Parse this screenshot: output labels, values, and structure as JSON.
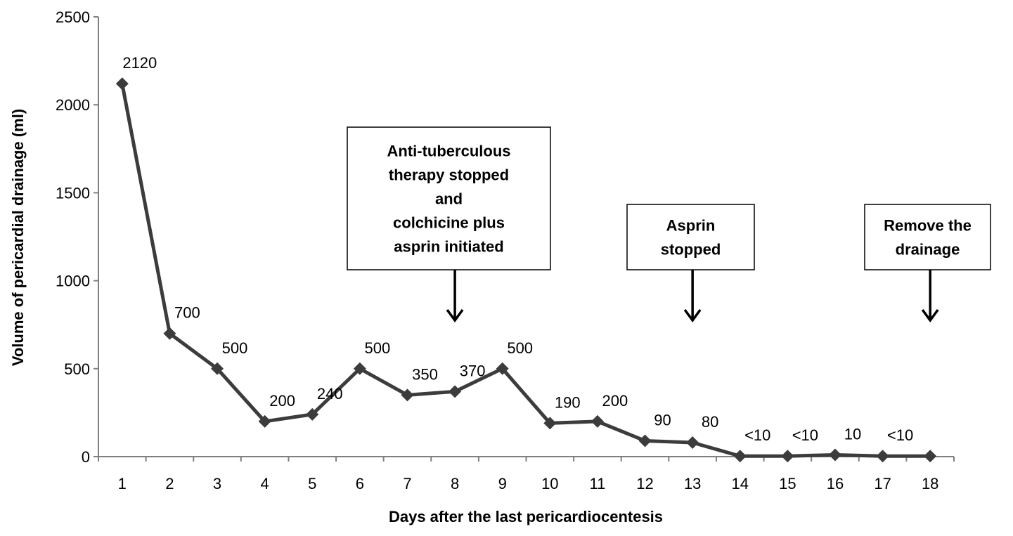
{
  "chart_data": {
    "type": "line",
    "title": "",
    "xlabel": "Days after the last pericardiocentesis",
    "ylabel": "Volume of pericardial drainage (ml)",
    "ylim": [
      0,
      2500
    ],
    "yticks": [
      0,
      500,
      1000,
      1500,
      2000,
      2500
    ],
    "categories": [
      "1",
      "2",
      "3",
      "4",
      "5",
      "6",
      "7",
      "8",
      "9",
      "10",
      "11",
      "12",
      "13",
      "14",
      "15",
      "16",
      "17",
      "18"
    ],
    "series": [
      {
        "values": [
          2120,
          700,
          500,
          200,
          240,
          500,
          350,
          370,
          500,
          190,
          200,
          90,
          80,
          3,
          3,
          10,
          3,
          3
        ],
        "labels": [
          "2120",
          "700",
          "500",
          "200",
          "240",
          "500",
          "350",
          "370",
          "500",
          "190",
          "200",
          "90",
          "80",
          "<10",
          "<10",
          "10",
          "<10",
          ""
        ]
      }
    ],
    "color": "#3c3c3c",
    "grid": false,
    "legend": "none",
    "annotations": [
      {
        "day": 8,
        "lines": [
          "Anti-tuberculous",
          "therapy stopped",
          "and",
          "colchicine plus",
          "asprin initiated"
        ]
      },
      {
        "day": 13,
        "lines": [
          "Asprin",
          "stopped"
        ]
      },
      {
        "day": 18,
        "lines": [
          "Remove the",
          "drainage"
        ]
      }
    ]
  }
}
